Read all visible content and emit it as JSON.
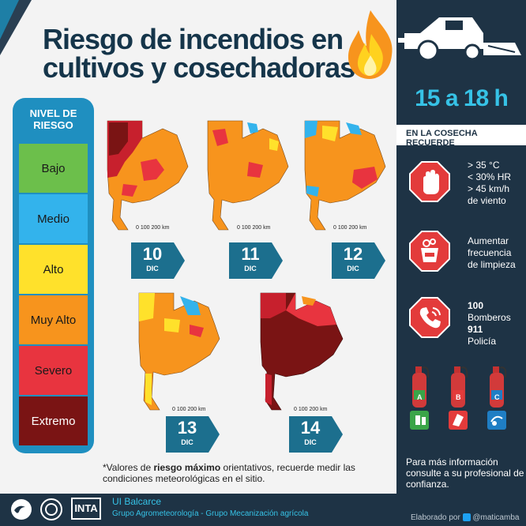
{
  "title": {
    "line1": "Riesgo de incendios en",
    "line2": "cultivos y cosechadoras"
  },
  "legend": {
    "title_line1": "NIVEL DE",
    "title_line2": "RIESGO",
    "levels": [
      {
        "label": "Bajo",
        "color": "#6cbf4b"
      },
      {
        "label": "Medio",
        "color": "#33b3ec"
      },
      {
        "label": "Alto",
        "color": "#ffe12b"
      },
      {
        "label": "Muy Alto",
        "color": "#f7941d"
      },
      {
        "label": "Severo",
        "color": "#e8343f"
      },
      {
        "label": "Extremo",
        "color": "#7a1414"
      }
    ]
  },
  "maps": [
    {
      "day": "10",
      "month": "DIC",
      "scale": "0   100   200 km"
    },
    {
      "day": "11",
      "month": "DIC",
      "scale": "0   100   200 km"
    },
    {
      "day": "12",
      "month": "DIC",
      "scale": "0   100   200 km"
    },
    {
      "day": "13",
      "month": "DIC",
      "scale": "0   100   200 km"
    },
    {
      "day": "14",
      "month": "DIC",
      "scale": "0   100   200 km"
    }
  ],
  "note": {
    "prefix": "*Valores de ",
    "bold": "riesgo máximo",
    "suffix": " orientativos, recuerde medir las condiciones meteorológicas en el sitio."
  },
  "sidebar": {
    "hours": "15 a 18 h",
    "harvest_heading": "EN LA COSECHA RECUERDE",
    "conditions": [
      "> 35 °C",
      "< 30% HR",
      "> 45 km/h",
      "de viento"
    ],
    "cleaning": [
      "Aumentar",
      "frecuencia",
      "de limpieza"
    ],
    "firefighters_number": "100",
    "firefighters_label": "Bomberos",
    "police_number": "911",
    "police_label": "Policía",
    "extinguishers": [
      "A",
      "B",
      "C"
    ],
    "more_info": "Para más información consulte a su profesional de confianza."
  },
  "footer": {
    "org": "UI Balcarce",
    "groups": "Grupo Agrometeorología  - Grupo Mecanización agrícola",
    "credit": "Elaborado por",
    "handle": "@maticamba",
    "inta": "INTA"
  },
  "colors": {
    "navy": "#1e3345",
    "cyan": "#36c2e6",
    "legend_bg": "#1f8fc0",
    "badge": "#1c6f8e",
    "stop_red": "#e33b3b"
  }
}
